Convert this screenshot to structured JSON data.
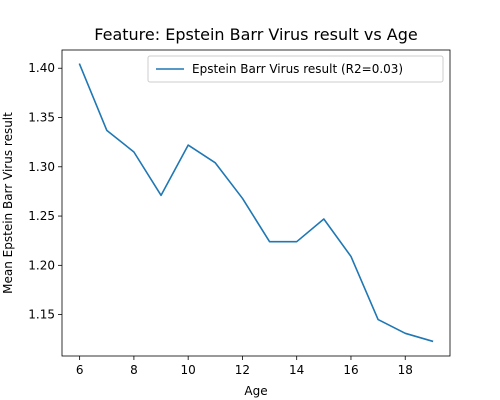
{
  "chart_data": {
    "type": "line",
    "title": "Feature: Epstein Barr Virus result vs Age",
    "xlabel": "Age",
    "ylabel": "Mean Epstein Barr Virus result",
    "xlim": [
      5.35,
      19.65
    ],
    "ylim": [
      1.108,
      1.4185
    ],
    "xticks": [
      6,
      8,
      10,
      12,
      14,
      16,
      18
    ],
    "xtick_labels": [
      "6",
      "8",
      "10",
      "12",
      "14",
      "16",
      "18"
    ],
    "yticks": [
      1.15,
      1.2,
      1.25,
      1.3,
      1.35,
      1.4
    ],
    "ytick_labels": [
      "1.15",
      "1.20",
      "1.25",
      "1.30",
      "1.35",
      "1.40"
    ],
    "grid": false,
    "legend_position": "top-right",
    "series": [
      {
        "name": "Epstein Barr Virus result (R2=0.03)",
        "color": "#1f77b4",
        "x": [
          6,
          7,
          8,
          9,
          10,
          11,
          12,
          13,
          14,
          15,
          16,
          17,
          18,
          19
        ],
        "y": [
          1.404,
          1.337,
          1.315,
          1.271,
          1.322,
          1.304,
          1.268,
          1.224,
          1.224,
          1.247,
          1.209,
          1.145,
          1.131,
          1.123
        ]
      }
    ]
  }
}
